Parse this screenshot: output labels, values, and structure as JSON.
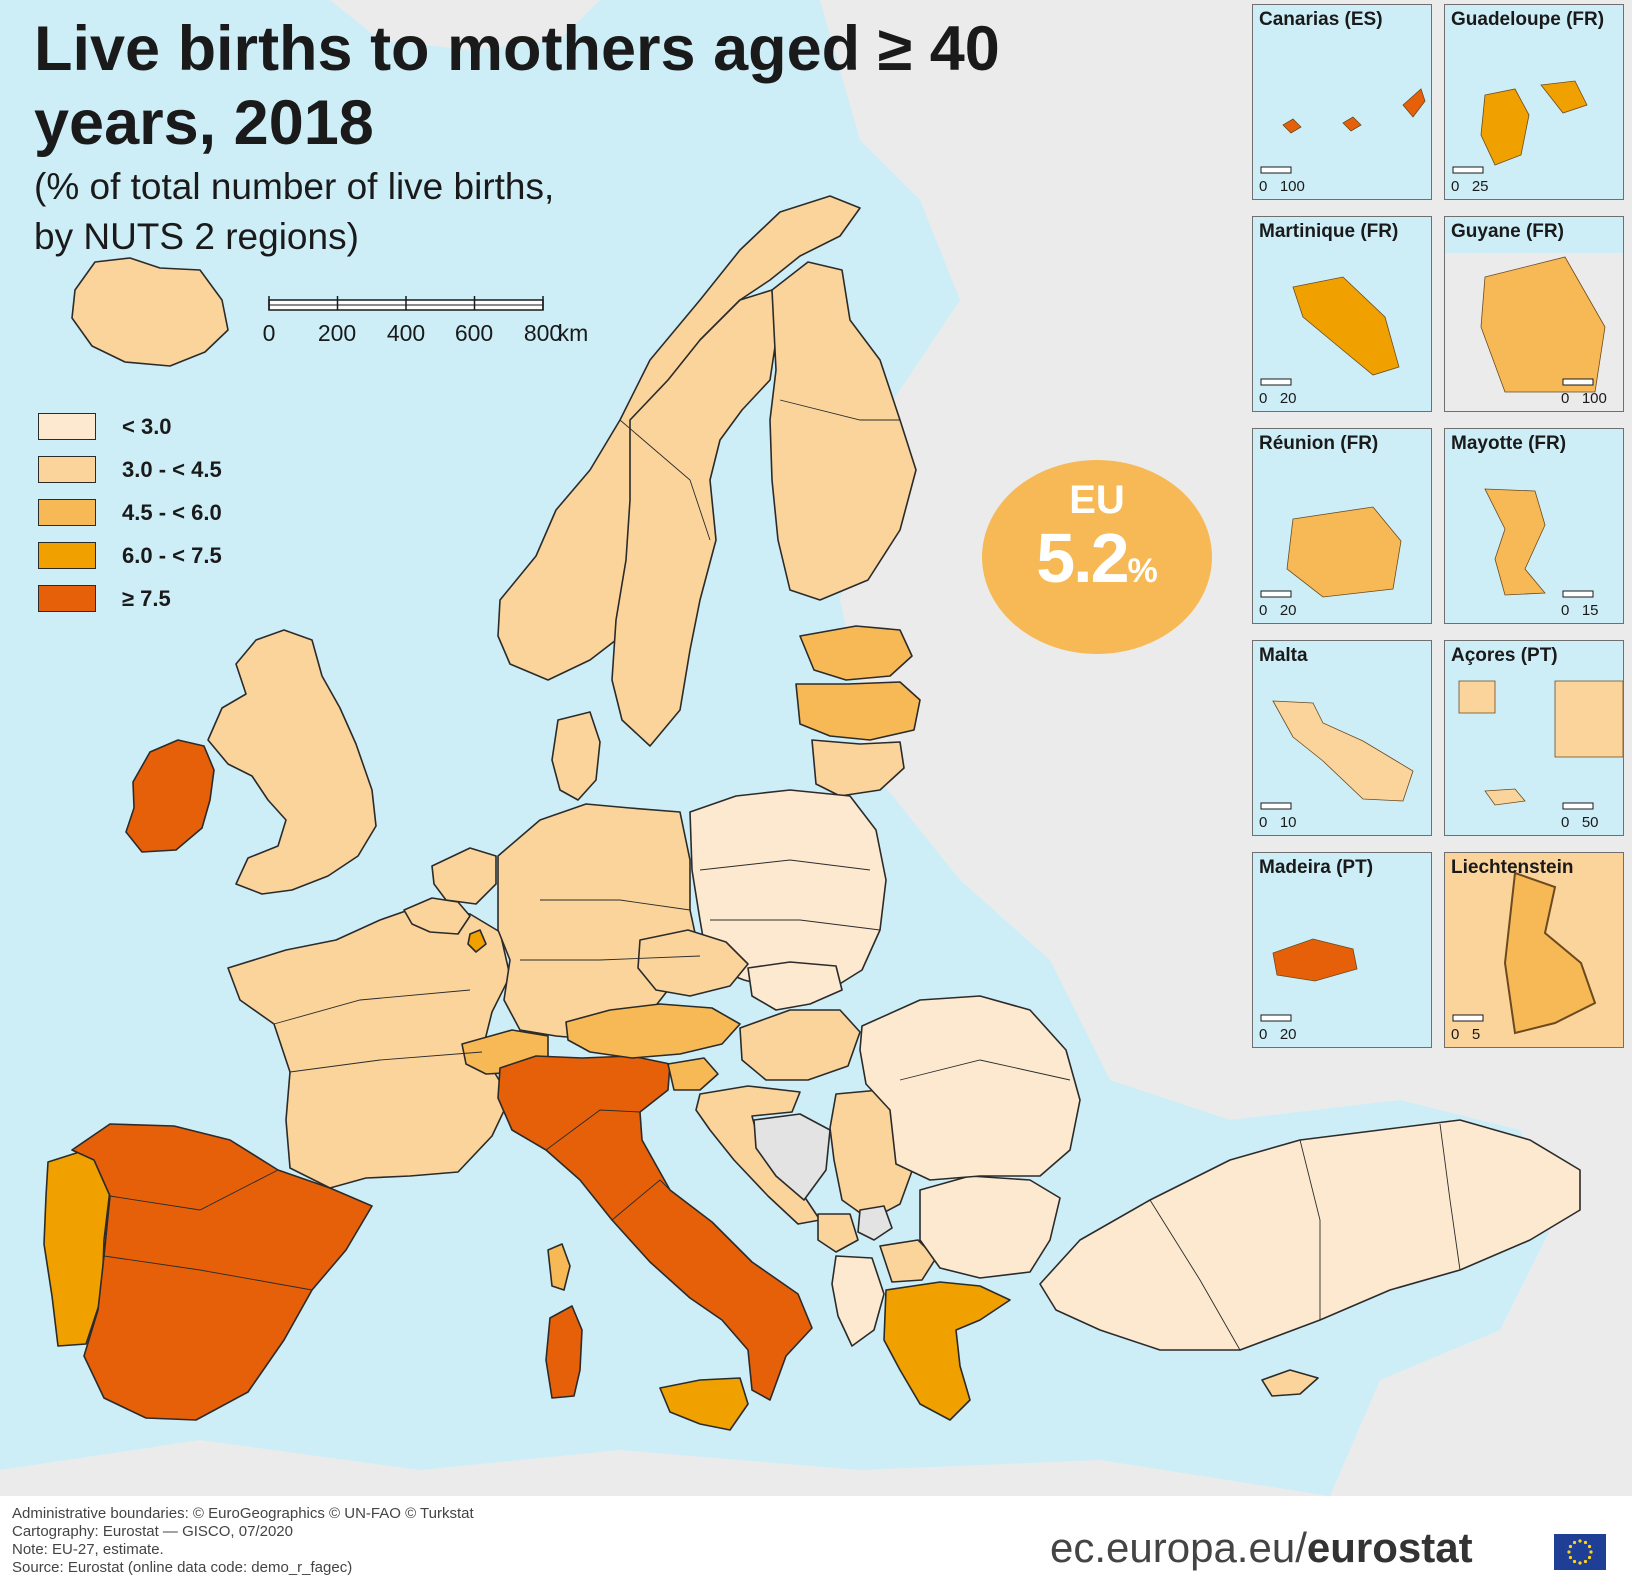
{
  "title": "Live births to mothers aged ≥ 40 years, 2018",
  "subtitle_line1": "(% of total number of live births,",
  "subtitle_line2": "by NUTS 2 regions)",
  "scale_bar": {
    "labels": [
      "0",
      "200",
      "400",
      "600",
      "800"
    ],
    "unit": "km"
  },
  "legend": [
    {
      "label": "< 3.0",
      "color": "#fde9cf"
    },
    {
      "label": "3.0 - < 4.5",
      "color": "#fbd49b"
    },
    {
      "label": "4.5 - < 6.0",
      "color": "#f7b955"
    },
    {
      "label": "6.0 - < 7.5",
      "color": "#f0a100"
    },
    {
      "label": "≥ 7.5",
      "color": "#e6600a"
    }
  ],
  "colors": {
    "sea": "#cdeef7",
    "non_eu_land": "#ebebeb",
    "no_data": "#e3e3e3",
    "border": "#2b2b2b"
  },
  "eu_indicator": {
    "label": "EU",
    "value": "5.2",
    "unit": "%"
  },
  "insets": [
    {
      "title": "Canarias (ES)",
      "scale_labels": [
        "0",
        "100"
      ],
      "fill_class": 4
    },
    {
      "title": "Guadeloupe (FR)",
      "scale_labels": [
        "0",
        "25"
      ],
      "fill_class": 3
    },
    {
      "title": "Martinique (FR)",
      "scale_labels": [
        "0",
        "20"
      ],
      "fill_class": 3
    },
    {
      "title": "Guyane (FR)",
      "scale_labels": [
        "0",
        "100"
      ],
      "fill_class": 2
    },
    {
      "title": "Réunion (FR)",
      "scale_labels": [
        "0",
        "20"
      ],
      "fill_class": 2
    },
    {
      "title": "Mayotte (FR)",
      "scale_labels": [
        "0",
        "15"
      ],
      "fill_class": 2
    },
    {
      "title": "Malta",
      "scale_labels": [
        "0",
        "10"
      ],
      "fill_class": 1
    },
    {
      "title": "Açores (PT)",
      "scale_labels": [
        "0",
        "50"
      ],
      "fill_class": 1
    },
    {
      "title": "Madeira (PT)",
      "scale_labels": [
        "0",
        "20"
      ],
      "fill_class": 4
    },
    {
      "title": "Liechtenstein",
      "scale_labels": [
        "0",
        "5"
      ],
      "fill_class": 2
    }
  ],
  "countries": [
    {
      "name": "Iceland",
      "class": 1
    },
    {
      "name": "Ireland",
      "class": 4
    },
    {
      "name": "United Kingdom",
      "class": 1
    },
    {
      "name": "Portugal",
      "class": 3
    },
    {
      "name": "Spain",
      "class": 4
    },
    {
      "name": "France",
      "class": 1
    },
    {
      "name": "Belgium",
      "class": 1
    },
    {
      "name": "Netherlands",
      "class": 1
    },
    {
      "name": "Luxembourg",
      "class": 3
    },
    {
      "name": "Switzerland",
      "class": 2
    },
    {
      "name": "Italy",
      "class": 4
    },
    {
      "name": "Sicilia",
      "class": 3
    },
    {
      "name": "Sardegna",
      "class": 4
    },
    {
      "name": "Corse",
      "class": 2
    },
    {
      "name": "Germany",
      "class": 1
    },
    {
      "name": "Denmark",
      "class": 1
    },
    {
      "name": "Norway",
      "class": 1
    },
    {
      "name": "Sweden",
      "class": 1
    },
    {
      "name": "Finland",
      "class": 1
    },
    {
      "name": "Estonia",
      "class": 2
    },
    {
      "name": "Latvia",
      "class": 2
    },
    {
      "name": "Lithuania",
      "class": 1
    },
    {
      "name": "Poland",
      "class": 0
    },
    {
      "name": "Czechia",
      "class": 1
    },
    {
      "name": "Slovakia",
      "class": 0
    },
    {
      "name": "Austria",
      "class": 2
    },
    {
      "name": "Hungary",
      "class": 1
    },
    {
      "name": "Slovenia",
      "class": 2
    },
    {
      "name": "Croatia",
      "class": 1
    },
    {
      "name": "Serbia",
      "class": 1
    },
    {
      "name": "Montenegro",
      "class": 1
    },
    {
      "name": "North Macedonia",
      "class": 1
    },
    {
      "name": "Albania",
      "class": 0
    },
    {
      "name": "Greece",
      "class": 3
    },
    {
      "name": "Bulgaria",
      "class": 0
    },
    {
      "name": "Romania",
      "class": 0
    },
    {
      "name": "Turkey",
      "class": 0
    },
    {
      "name": "Cyprus",
      "class": 1
    },
    {
      "name": "Bosnia and Herzegovina",
      "class": -1
    },
    {
      "name": "Kosovo",
      "class": -1
    }
  ],
  "footer": [
    "Administrative boundaries: © EuroGeographics © UN-FAO © Turkstat",
    "Cartography: Eurostat — GISCO, 07/2020",
    "Note: EU-27, estimate.",
    "Source: Eurostat (online data code: demo_r_fagec)"
  ],
  "brand_prefix": "ec.europa.eu/",
  "brand_name": "eurostat"
}
